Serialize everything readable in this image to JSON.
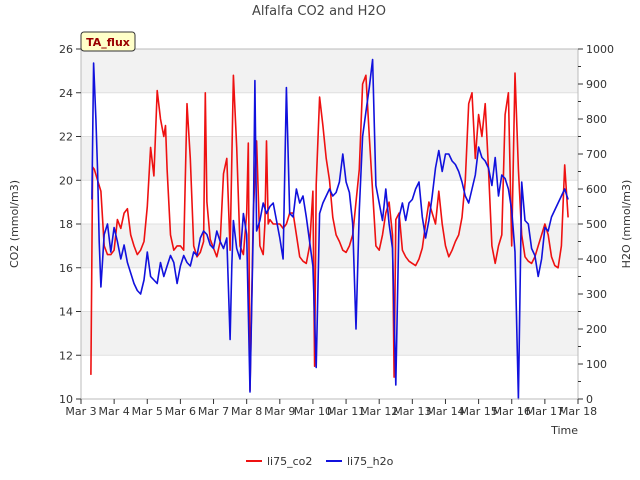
{
  "chart_data": {
    "type": "line",
    "title": "Alfalfa CO2 and H2O",
    "xlabel": "Time",
    "ylabel_left": "CO2 (mmol/m3)",
    "ylabel_right": "H2O (mmol/m3)",
    "annotation": "TA_flux",
    "x_ticks": [
      "Mar 3",
      "Mar 4",
      "Mar 5",
      "Mar 6",
      "Mar 7",
      "Mar 8",
      "Mar 9",
      "Mar 10",
      "Mar 11",
      "Mar 12",
      "Mar 13",
      "Mar 14",
      "Mar 15",
      "Mar 16",
      "Mar 17",
      "Mar 18"
    ],
    "xlim": [
      0,
      15
    ],
    "ylim_left": [
      10,
      26
    ],
    "yticks_left": [
      10,
      12,
      14,
      16,
      18,
      20,
      22,
      24,
      26
    ],
    "ylim_right": [
      0,
      1000
    ],
    "yticks_right": [
      0,
      100,
      200,
      300,
      400,
      500,
      600,
      700,
      800,
      900,
      1000
    ],
    "grid": "horizontal bands",
    "legend_position": "bottom-center",
    "colors": {
      "li75_co2": "#ee1111",
      "li75_h2o": "#1111dd"
    },
    "series": [
      {
        "name": "li75_co2",
        "axis": "left",
        "x": [
          0.3,
          0.35,
          0.4,
          0.5,
          0.6,
          0.7,
          0.8,
          0.9,
          1.0,
          1.1,
          1.2,
          1.3,
          1.4,
          1.5,
          1.6,
          1.7,
          1.8,
          1.9,
          2.0,
          2.1,
          2.2,
          2.3,
          2.4,
          2.5,
          2.55,
          2.6,
          2.7,
          2.8,
          2.85,
          2.9,
          3.0,
          3.1,
          3.2,
          3.3,
          3.4,
          3.5,
          3.6,
          3.7,
          3.75,
          3.8,
          3.9,
          4.0,
          4.1,
          4.2,
          4.3,
          4.4,
          4.5,
          4.6,
          4.7,
          4.8,
          4.9,
          5.0,
          5.05,
          5.1,
          5.2,
          5.3,
          5.4,
          5.5,
          5.55,
          5.6,
          5.65,
          5.7,
          5.8,
          5.9,
          6.0,
          6.1,
          6.2,
          6.3,
          6.4,
          6.5,
          6.6,
          6.7,
          6.8,
          6.9,
          7.0,
          7.05,
          7.1,
          7.2,
          7.3,
          7.4,
          7.5,
          7.6,
          7.7,
          7.8,
          7.9,
          8.0,
          8.1,
          8.2,
          8.3,
          8.4,
          8.5,
          8.6,
          8.7,
          8.8,
          8.9,
          9.0,
          9.1,
          9.2,
          9.3,
          9.4,
          9.45,
          9.5,
          9.6,
          9.7,
          9.8,
          9.9,
          10.0,
          10.1,
          10.2,
          10.3,
          10.4,
          10.5,
          10.6,
          10.7,
          10.8,
          10.9,
          11.0,
          11.1,
          11.2,
          11.3,
          11.4,
          11.5,
          11.6,
          11.7,
          11.8,
          11.9,
          12.0,
          12.1,
          12.2,
          12.3,
          12.4,
          12.5,
          12.6,
          12.7,
          12.8,
          12.9,
          13.0,
          13.1,
          13.2,
          13.3,
          13.4,
          13.5,
          13.6,
          13.7,
          13.8,
          13.9,
          14.0,
          14.1,
          14.2,
          14.3,
          14.4,
          14.5,
          14.6,
          14.7
        ],
        "values": [
          11.1,
          20.6,
          20.5,
          20.0,
          19.5,
          17.0,
          16.6,
          16.6,
          16.8,
          18.2,
          17.8,
          18.5,
          18.7,
          17.5,
          17.0,
          16.6,
          16.8,
          17.2,
          18.8,
          21.5,
          20.2,
          24.1,
          22.8,
          22.0,
          22.5,
          20.5,
          17.5,
          16.8,
          16.9,
          17.0,
          17.0,
          16.8,
          23.5,
          21.0,
          17.0,
          16.5,
          16.7,
          17.2,
          24.0,
          19.0,
          17.3,
          16.9,
          16.5,
          17.2,
          20.3,
          21.0,
          16.8,
          24.8,
          21.5,
          17.0,
          16.6,
          18.5,
          21.7,
          10.4,
          18.5,
          21.8,
          17.0,
          16.6,
          18.0,
          21.8,
          18.0,
          18.2,
          18.0,
          18.0,
          18.0,
          17.8,
          18.0,
          18.5,
          18.5,
          17.5,
          16.5,
          16.3,
          16.2,
          17.0,
          19.5,
          11.5,
          19.8,
          23.8,
          22.5,
          21.0,
          20.0,
          18.3,
          17.5,
          17.2,
          16.8,
          16.7,
          17.0,
          17.5,
          19.0,
          20.5,
          24.4,
          24.8,
          22.0,
          19.5,
          17.0,
          16.8,
          17.5,
          18.5,
          19.0,
          17.5,
          11.0,
          18.2,
          18.5,
          16.8,
          16.5,
          16.3,
          16.2,
          16.1,
          16.4,
          16.9,
          18.0,
          19.0,
          18.5,
          18.0,
          19.5,
          18.0,
          17.0,
          16.5,
          16.8,
          17.2,
          17.5,
          18.3,
          20.0,
          23.5,
          24.0,
          21.0,
          23.0,
          22.0,
          23.5,
          20.5,
          17.0,
          16.2,
          17.0,
          17.5,
          23.0,
          24.0,
          17.0,
          24.9,
          20.5,
          17.5,
          16.5,
          16.3,
          16.2,
          16.5,
          17.0,
          17.5,
          18.0,
          17.5,
          16.5,
          16.1,
          16.0,
          17.0,
          20.7,
          18.3
        ]
      },
      {
        "name": "li75_h2o",
        "axis": "right",
        "x": [
          0.33,
          0.38,
          0.45,
          0.5,
          0.55,
          0.6,
          0.7,
          0.8,
          0.9,
          1.0,
          1.1,
          1.2,
          1.3,
          1.4,
          1.5,
          1.6,
          1.7,
          1.8,
          1.9,
          2.0,
          2.1,
          2.2,
          2.3,
          2.4,
          2.5,
          2.6,
          2.7,
          2.8,
          2.9,
          3.0,
          3.1,
          3.2,
          3.3,
          3.4,
          3.5,
          3.6,
          3.7,
          3.8,
          3.9,
          4.0,
          4.1,
          4.2,
          4.3,
          4.4,
          4.5,
          4.55,
          4.6,
          4.7,
          4.8,
          4.9,
          5.0,
          5.1,
          5.2,
          5.25,
          5.3,
          5.4,
          5.5,
          5.6,
          5.7,
          5.8,
          5.9,
          6.0,
          6.1,
          6.2,
          6.3,
          6.4,
          6.5,
          6.6,
          6.7,
          6.8,
          6.9,
          7.0,
          7.1,
          7.2,
          7.3,
          7.4,
          7.5,
          7.6,
          7.7,
          7.8,
          7.9,
          8.0,
          8.1,
          8.2,
          8.3,
          8.4,
          8.5,
          8.6,
          8.7,
          8.8,
          8.9,
          9.0,
          9.1,
          9.2,
          9.3,
          9.4,
          9.5,
          9.6,
          9.7,
          9.8,
          9.9,
          10.0,
          10.1,
          10.2,
          10.3,
          10.4,
          10.5,
          10.6,
          10.7,
          10.8,
          10.9,
          11.0,
          11.1,
          11.2,
          11.3,
          11.4,
          11.5,
          11.6,
          11.7,
          11.8,
          11.9,
          12.0,
          12.1,
          12.2,
          12.3,
          12.4,
          12.5,
          12.6,
          12.7,
          12.8,
          12.9,
          13.0,
          13.1,
          13.2,
          13.3,
          13.4,
          13.5,
          13.6,
          13.7,
          13.8,
          13.9,
          14.0,
          14.1,
          14.2,
          14.3,
          14.4,
          14.5,
          14.6,
          14.7
        ],
        "values": [
          570,
          960,
          800,
          650,
          450,
          320,
          470,
          500,
          420,
          490,
          450,
          400,
          440,
          390,
          360,
          330,
          310,
          300,
          340,
          420,
          350,
          340,
          330,
          390,
          350,
          380,
          410,
          390,
          330,
          380,
          410,
          390,
          380,
          420,
          410,
          460,
          480,
          470,
          440,
          430,
          480,
          450,
          430,
          460,
          170,
          380,
          510,
          430,
          400,
          530,
          470,
          20,
          490,
          910,
          480,
          510,
          560,
          530,
          550,
          560,
          510,
          460,
          400,
          890,
          530,
          520,
          600,
          560,
          580,
          520,
          450,
          380,
          90,
          530,
          560,
          580,
          600,
          580,
          590,
          620,
          700,
          620,
          590,
          500,
          200,
          540,
          750,
          820,
          890,
          970,
          610,
          560,
          510,
          600,
          500,
          430,
          40,
          520,
          560,
          510,
          560,
          570,
          600,
          620,
          520,
          460,
          510,
          580,
          660,
          710,
          650,
          700,
          700,
          680,
          670,
          650,
          620,
          580,
          560,
          600,
          640,
          720,
          690,
          680,
          660,
          610,
          690,
          580,
          640,
          630,
          600,
          540,
          420,
          0,
          620,
          510,
          500,
          430,
          410,
          350,
          400,
          490,
          480,
          520,
          540,
          560,
          580,
          600,
          570
        ]
      }
    ]
  }
}
